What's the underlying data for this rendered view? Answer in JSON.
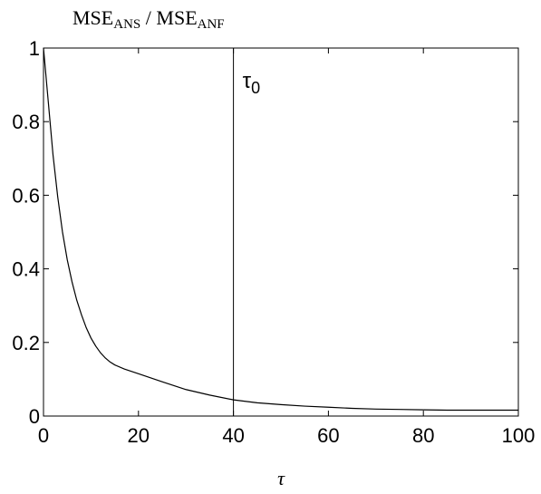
{
  "chart_data": {
    "type": "line",
    "ylabel": {
      "main1": "MSE",
      "sub1": "ANS",
      "sep": " / ",
      "main2": "MSE",
      "sub2": "ANF"
    },
    "xlabel": "τ",
    "xlim": [
      0,
      100
    ],
    "ylim": [
      0,
      1
    ],
    "xticks": [
      0,
      20,
      40,
      60,
      80,
      100
    ],
    "yticks": [
      0,
      0.2,
      0.4,
      0.6,
      0.8,
      1
    ],
    "xtick_labels": [
      "0",
      "20",
      "40",
      "60",
      "80",
      "100"
    ],
    "ytick_labels": [
      "0",
      "0.2",
      "0.4",
      "0.6",
      "0.8",
      "1"
    ],
    "grid": false,
    "series": [
      {
        "x": [
          0,
          1,
          2,
          3,
          4,
          5,
          6,
          7,
          8,
          9,
          10,
          11,
          12,
          13,
          14,
          15,
          17,
          20,
          25,
          30,
          35,
          40,
          45,
          50,
          55,
          60,
          65,
          70,
          75,
          80,
          85,
          90,
          95,
          100
        ],
        "y": [
          1.0,
          0.855,
          0.71,
          0.595,
          0.5,
          0.425,
          0.365,
          0.315,
          0.275,
          0.24,
          0.212,
          0.19,
          0.172,
          0.158,
          0.147,
          0.139,
          0.128,
          0.115,
          0.093,
          0.072,
          0.057,
          0.044,
          0.036,
          0.031,
          0.027,
          0.024,
          0.021,
          0.019,
          0.018,
          0.017,
          0.016,
          0.016,
          0.016,
          0.016
        ]
      }
    ],
    "annotations": [
      {
        "type": "vline",
        "x": 40,
        "label_main": "τ",
        "label_sub": "0"
      }
    ]
  }
}
